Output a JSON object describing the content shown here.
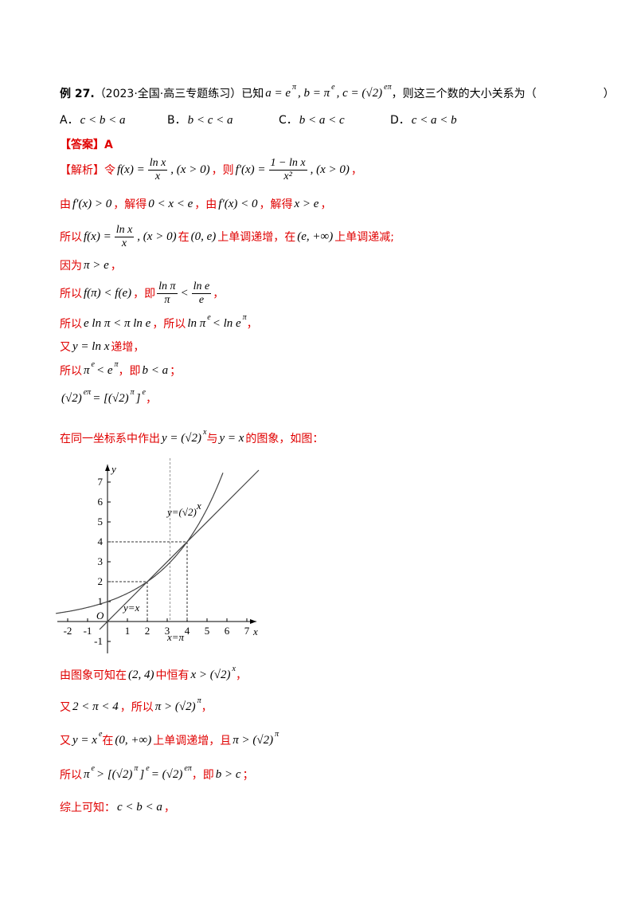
{
  "options": [
    {
      "label": "A．",
      "math": "c < b < a"
    },
    {
      "label": "B．",
      "math": "b < c < a"
    },
    {
      "label": "C．",
      "math": "b < a < c"
    },
    {
      "label": "D．",
      "math": "c < a < b"
    }
  ],
  "lines": [
    {
      "segs": [
        {
          "b": "例 27."
        },
        {
          "txt": "（2023·全国·高三专题练习）已知"
        },
        {
          "math": "a = e"
        },
        {
          "sup": "π"
        },
        {
          "math": ", b = π"
        },
        {
          "sup": "e"
        },
        {
          "math": ", c = (√2)"
        },
        {
          "sup": "eπ"
        },
        {
          "txt": "，则这三个数的大小关系为（　　　　　　）"
        }
      ]
    },
    {
      "segs": [
        {
          "zhb": "【答案】A"
        }
      ]
    },
    {
      "segs": [
        {
          "zh": "【解析】令"
        },
        {
          "math": "f(x) ="
        },
        {
          "frac": [
            "ln x",
            "x"
          ]
        },
        {
          "math": ", (x > 0)"
        },
        {
          "zh": "，则"
        },
        {
          "math": "f′(x) ="
        },
        {
          "frac": [
            "1 − ln x",
            "x²"
          ]
        },
        {
          "math": ", (x > 0)"
        },
        {
          "zh": "，"
        }
      ]
    },
    {
      "segs": [
        {
          "zh": "由"
        },
        {
          "math": "f′(x) > 0"
        },
        {
          "zh": "，解得"
        },
        {
          "math": "0 < x < e"
        },
        {
          "zh": "，由"
        },
        {
          "math": "f′(x) < 0"
        },
        {
          "zh": "，解得"
        },
        {
          "math": "x > e"
        },
        {
          "zh": "，"
        }
      ]
    },
    {
      "segs": [
        {
          "zh": "所以"
        },
        {
          "math": "f(x) ="
        },
        {
          "frac": [
            "ln x",
            "x"
          ]
        },
        {
          "math": ", (x > 0)"
        },
        {
          "zh": "在"
        },
        {
          "math": "(0, e)"
        },
        {
          "zh": "上单调递增，在"
        },
        {
          "math": "(e, +∞)"
        },
        {
          "zh": "上单调递减;"
        }
      ]
    },
    {
      "segs": [
        {
          "zh": "因为"
        },
        {
          "math": "π > e"
        },
        {
          "zh": "，"
        }
      ]
    },
    {
      "segs": [
        {
          "zh": "所以"
        },
        {
          "math": "f(π) < f(e)"
        },
        {
          "zh": "，即"
        },
        {
          "frac": [
            "ln π",
            "π"
          ]
        },
        {
          "math": "<"
        },
        {
          "frac": [
            "ln e",
            "e"
          ]
        },
        {
          "zh": "，"
        }
      ]
    },
    {
      "segs": [
        {
          "zh": "所以"
        },
        {
          "math": "e ln π < π ln e"
        },
        {
          "zh": "，所以"
        },
        {
          "math": "ln π"
        },
        {
          "sup": "e"
        },
        {
          "math": "< ln e"
        },
        {
          "sup": "π"
        },
        {
          "zh": "，"
        }
      ]
    },
    {
      "segs": [
        {
          "zh": "又"
        },
        {
          "math": "y = ln x"
        },
        {
          "zh": "递增，"
        }
      ]
    },
    {
      "segs": [
        {
          "zh": "所以"
        },
        {
          "math": "π"
        },
        {
          "sup": "e"
        },
        {
          "math": "< e"
        },
        {
          "sup": "π"
        },
        {
          "zh": "，即"
        },
        {
          "math": "b < a"
        },
        {
          "zh": "；"
        }
      ]
    },
    {
      "segs": [
        {
          "math": "(√2)"
        },
        {
          "sup": "eπ"
        },
        {
          "math": "= [(√2)"
        },
        {
          "sup": "π"
        },
        {
          "math": "]"
        },
        {
          "sup": "e"
        },
        {
          "zh": "，"
        }
      ]
    },
    {
      "segs": [
        {
          "zh": "在同一坐标系中作出"
        },
        {
          "math": "y = (√2)"
        },
        {
          "sup": "x"
        },
        {
          "zh": "与"
        },
        {
          "math": "y = x"
        },
        {
          "zh": "的图象，如图："
        }
      ]
    },
    {
      "segs": [
        {
          "zh": "由图象可知在"
        },
        {
          "math": "(2, 4)"
        },
        {
          "zh": "中恒有"
        },
        {
          "math": "x > (√2)"
        },
        {
          "sup": "x"
        },
        {
          "zh": "，"
        }
      ]
    },
    {
      "segs": [
        {
          "zh": "又"
        },
        {
          "math": "2 < π < 4"
        },
        {
          "zh": "，所以"
        },
        {
          "math": "π > (√2)"
        },
        {
          "sup": "π"
        },
        {
          "zh": "，"
        }
      ]
    },
    {
      "segs": [
        {
          "zh": "又"
        },
        {
          "math": "y = x"
        },
        {
          "sup": "e"
        },
        {
          "zh": "在"
        },
        {
          "math": "(0, +∞)"
        },
        {
          "zh": "上单调递增，且"
        },
        {
          "math": "π > (√2)"
        },
        {
          "sup": "π"
        }
      ]
    },
    {
      "segs": [
        {
          "zh": "所以"
        },
        {
          "math": "π"
        },
        {
          "sup": "e"
        },
        {
          "math": "> [(√2)"
        },
        {
          "sup": "π"
        },
        {
          "math": "]"
        },
        {
          "sup": "e"
        },
        {
          "math": "= (√2)"
        },
        {
          "sup": "eπ"
        },
        {
          "zh": "，即"
        },
        {
          "math": "b > c"
        },
        {
          "zh": "；"
        }
      ]
    },
    {
      "segs": [
        {
          "zh": "综上可知："
        },
        {
          "math": "c < b < a"
        },
        {
          "zh": "，"
        }
      ]
    }
  ],
  "graph": {
    "xticks": [
      -2,
      -1,
      1,
      2,
      3,
      4,
      5,
      6,
      7
    ],
    "yticks": [
      -1,
      1,
      2,
      3,
      4,
      5,
      6,
      7
    ],
    "origin": "O",
    "xlabel": "x",
    "ylabel": "y",
    "curve_label": "y=(√2)",
    "curve_sup": "x",
    "line_label": "y=x",
    "vline_label": "x=π"
  }
}
